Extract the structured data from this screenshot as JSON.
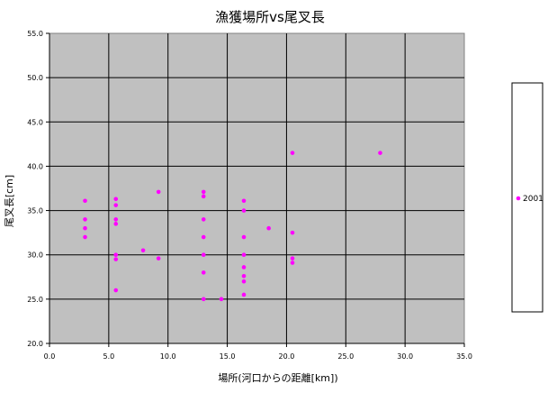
{
  "chart_data": {
    "type": "scatter",
    "title": "漁獲場所vs尾叉長",
    "xlabel": "場所(河口からの距離[km])",
    "ylabel": "尾叉長[cm]",
    "xlim": [
      0,
      35
    ],
    "ylim": [
      20,
      55
    ],
    "x_ticks": [
      "0.0",
      "5.0",
      "10.0",
      "15.0",
      "20.0",
      "25.0",
      "30.0",
      "35.0"
    ],
    "y_ticks": [
      "20.0",
      "25.0",
      "30.0",
      "35.0",
      "40.0",
      "45.0",
      "50.0",
      "55.0"
    ],
    "grid": true,
    "legend_position": "right",
    "plot_background": "#c0c0c0",
    "marker_color": "#ff00ff",
    "series": [
      {
        "name": "2001",
        "points": [
          [
            3.0,
            36.1
          ],
          [
            3.0,
            34.0
          ],
          [
            3.0,
            33.0
          ],
          [
            3.0,
            32.0
          ],
          [
            5.6,
            36.3
          ],
          [
            5.6,
            35.6
          ],
          [
            5.6,
            34.0
          ],
          [
            5.6,
            33.5
          ],
          [
            5.6,
            30.0
          ],
          [
            5.6,
            29.5
          ],
          [
            5.6,
            26.0
          ],
          [
            7.9,
            30.5
          ],
          [
            9.2,
            37.1
          ],
          [
            9.2,
            29.6
          ],
          [
            13.0,
            37.1
          ],
          [
            13.0,
            36.6
          ],
          [
            13.0,
            34.0
          ],
          [
            13.0,
            32.0
          ],
          [
            13.0,
            30.0
          ],
          [
            13.0,
            28.0
          ],
          [
            13.0,
            25.0
          ],
          [
            14.5,
            25.0
          ],
          [
            16.4,
            36.1
          ],
          [
            16.4,
            35.0
          ],
          [
            16.4,
            32.0
          ],
          [
            16.4,
            30.0
          ],
          [
            16.4,
            28.6
          ],
          [
            16.4,
            27.6
          ],
          [
            16.4,
            27.0
          ],
          [
            16.4,
            25.5
          ],
          [
            18.5,
            33.0
          ],
          [
            20.5,
            41.5
          ],
          [
            20.5,
            32.5
          ],
          [
            20.5,
            29.6
          ],
          [
            20.5,
            29.1
          ],
          [
            27.9,
            41.5
          ]
        ]
      }
    ]
  }
}
